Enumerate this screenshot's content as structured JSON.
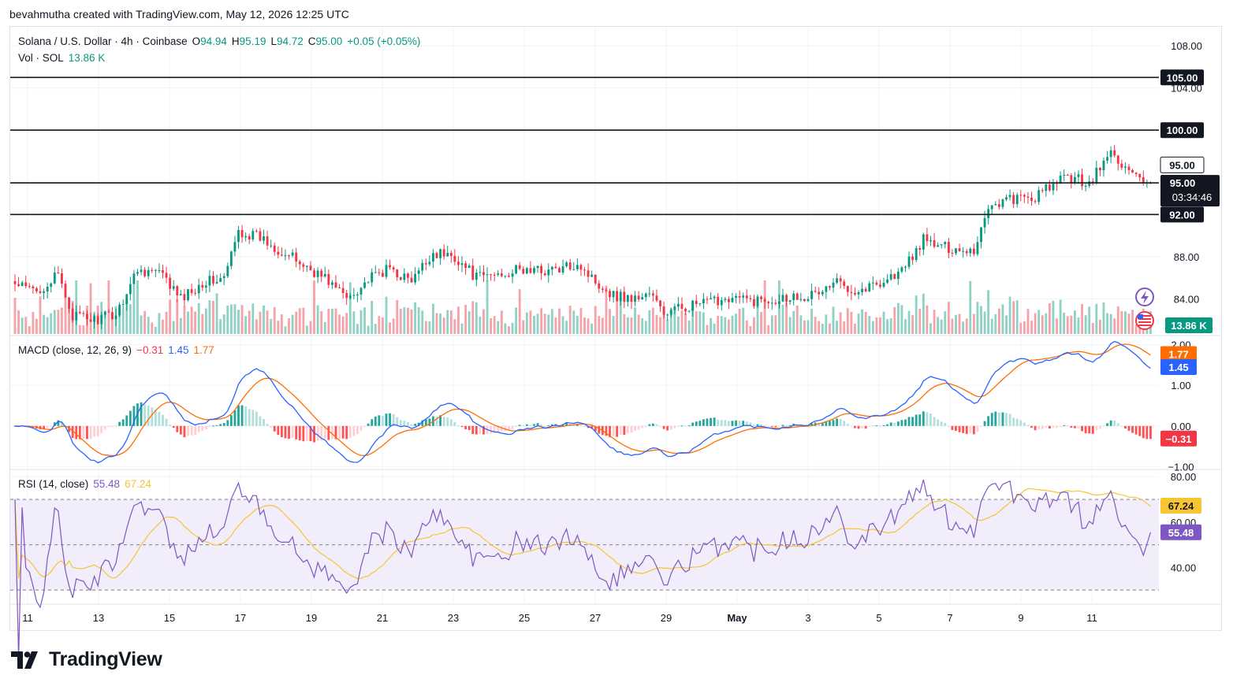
{
  "caption": "bevahmutha created with TradingView.com, May 12, 2026 12:25 UTC",
  "brand": {
    "name": "TradingView"
  },
  "legend": {
    "symbol": "Solana / U.S. Dollar · 4h · Coinbase",
    "o_label": "O",
    "o_value": "94.94",
    "h_label": "H",
    "h_value": "95.19",
    "l_label": "L",
    "l_value": "94.72",
    "c_label": "C",
    "c_value": "95.00",
    "change": "+0.05 (+0.05%)",
    "vol_label": "Vol · SOL",
    "vol_value": "13.86 K"
  },
  "macd_legend": {
    "label": "MACD (close, 12, 26, 9)",
    "hist": "−0.31",
    "macd": "1.45",
    "signal": "1.77"
  },
  "rsi_legend": {
    "label": "RSI (14, close)",
    "rsi": "55.48",
    "ma": "67.24"
  },
  "colors": {
    "up": "#089981",
    "down": "#f23645",
    "up_vol": "#8fd1c4",
    "down_vol": "#f5a3a8",
    "macd": "#2962ff",
    "signal": "#ff6d00",
    "rsi": "#7e57c2",
    "rsi_ma": "#f7c531",
    "rsi_band": "#f1edfb"
  },
  "chart_data": [
    {
      "type": "candlestick",
      "title": "Solana / U.S. Dollar · 4h · Coinbase",
      "price_axis_ticks": [
        108,
        104,
        100,
        95,
        92,
        88,
        84
      ],
      "price_axis_tick_labels": [
        "108.00",
        "104.00",
        "100.00",
        "95.00",
        "92.00",
        "88.00",
        "84.00"
      ],
      "ylim": [
        80.6,
        109.8
      ],
      "x_tick_labels": [
        "11",
        "13",
        "15",
        "17",
        "19",
        "21",
        "23",
        "25",
        "27",
        "29",
        "May",
        "3",
        "5",
        "7",
        "9",
        "11"
      ],
      "horizontal_levels": [
        {
          "value": 105.0,
          "label": "105.00"
        },
        {
          "value": 100.0,
          "label": "100.00"
        },
        {
          "value": 95.0,
          "label": "95.00"
        },
        {
          "value": 92.0,
          "label": "92.00"
        }
      ],
      "last_price": {
        "value": 95.0,
        "label": "95.00",
        "countdown": "03:34:46"
      },
      "price_marker_above": {
        "value": 96.7,
        "label": "95.00"
      },
      "close_anchors": [
        [
          0,
          85.3
        ],
        [
          6,
          84.7
        ],
        [
          12,
          86.2
        ],
        [
          16,
          82.4
        ],
        [
          22,
          82.0
        ],
        [
          28,
          82.6
        ],
        [
          34,
          86.8
        ],
        [
          40,
          86.5
        ],
        [
          46,
          84.0
        ],
        [
          52,
          85.6
        ],
        [
          58,
          85.9
        ],
        [
          62,
          90.4
        ],
        [
          68,
          89.8
        ],
        [
          74,
          88.5
        ],
        [
          80,
          87.2
        ],
        [
          86,
          86.0
        ],
        [
          92,
          84.1
        ],
        [
          98,
          85.8
        ],
        [
          104,
          86.9
        ],
        [
          110,
          85.6
        ],
        [
          116,
          88.4
        ],
        [
          122,
          88.0
        ],
        [
          128,
          86.0
        ],
        [
          134,
          86.4
        ],
        [
          140,
          86.7
        ],
        [
          146,
          86.7
        ],
        [
          152,
          86.8
        ],
        [
          156,
          87.5
        ],
        [
          160,
          86.0
        ],
        [
          166,
          84.4
        ],
        [
          172,
          84.0
        ],
        [
          176,
          84.6
        ],
        [
          180,
          82.6
        ],
        [
          186,
          83.3
        ],
        [
          192,
          83.6
        ],
        [
          198,
          84.2
        ],
        [
          204,
          83.8
        ],
        [
          210,
          84.0
        ],
        [
          216,
          84.3
        ],
        [
          222,
          84.4
        ],
        [
          228,
          85.6
        ],
        [
          234,
          84.8
        ],
        [
          240,
          85.6
        ],
        [
          246,
          86.6
        ],
        [
          252,
          89.6
        ],
        [
          256,
          89.0
        ],
        [
          260,
          88.8
        ],
        [
          266,
          88.6
        ],
        [
          270,
          92.8
        ],
        [
          276,
          93.5
        ],
        [
          282,
          93.4
        ],
        [
          288,
          94.8
        ],
        [
          292,
          95.6
        ],
        [
          298,
          95.0
        ],
        [
          304,
          97.9
        ],
        [
          308,
          96.4
        ],
        [
          313,
          95.0
        ]
      ],
      "volume_unit": "K"
    },
    {
      "type": "line",
      "title": "MACD (close, 12, 26, 9)",
      "tick_labels": [
        "2.00",
        "1.00",
        "0.00",
        "−1.00"
      ],
      "ylim": [
        -1.05,
        2.05
      ],
      "series": [
        {
          "name": "MACD",
          "value": 1.45
        },
        {
          "name": "Signal",
          "value": 1.77
        },
        {
          "name": "Histogram",
          "value": -0.31
        }
      ]
    },
    {
      "type": "line",
      "title": "RSI (14, close)",
      "tick_labels": [
        "80.00",
        "60.00",
        "40.00"
      ],
      "ylim": [
        24.5,
        82.5
      ],
      "band": [
        30,
        70
      ],
      "series": [
        {
          "name": "RSI",
          "value": 55.48
        },
        {
          "name": "RSI MA",
          "value": 67.24
        }
      ]
    }
  ]
}
